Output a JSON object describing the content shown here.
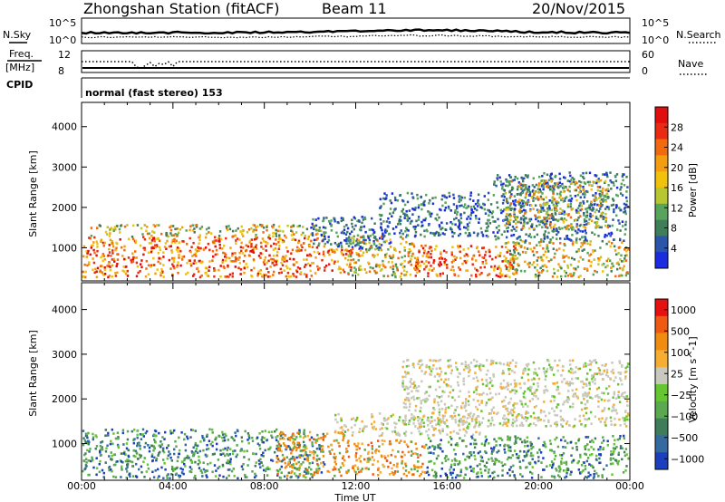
{
  "header": {
    "title": "Zhongshan Station (fitACF)",
    "beam": "Beam 11",
    "date": "20/Nov/2015"
  },
  "strip": {
    "nsky_label": "N.Sky",
    "nsky_ticks": [
      "10^5",
      "10^0"
    ],
    "nsearch_label": "N.Search",
    "nsearch_ticks": [
      "10^5",
      "10^0"
    ],
    "freq_label_line1": "Freq.",
    "freq_label_line2": "[MHz]",
    "freq_ticks": [
      "12",
      "8"
    ],
    "nave_label": "Nave",
    "nave_ticks": [
      "60",
      "0"
    ],
    "cpid_label": "CPID",
    "mode_text": "normal (fast stereo) 153"
  },
  "colors": {
    "power_scale": [
      "#1a2be0",
      "#2a55a8",
      "#3f7e59",
      "#58a45c",
      "#b8c632",
      "#f0c20b",
      "#f39e10",
      "#f26a0e",
      "#ea2b13",
      "#e10e0e"
    ],
    "velocity_scale": [
      "#1b3fbe",
      "#356aa0",
      "#3f7c5a",
      "#5aa850",
      "#66c631",
      "#c8c8bd",
      "#f5ae32",
      "#f08c10",
      "#ee5a12",
      "#e61010"
    ]
  },
  "chart_data": [
    {
      "type": "heatmap",
      "title": "",
      "xlabel": "",
      "ylabel": "Slant Range [km]",
      "x_tick_labels": [
        "00:00",
        "04:00",
        "08:00",
        "12:00",
        "16:00",
        "20:00",
        "00:00"
      ],
      "y_tick_labels": [
        "1000",
        "2000",
        "3000",
        "4000"
      ],
      "colorbar_label": "Power [dB]",
      "colorbar_ticks": [
        "28",
        "24",
        "20",
        "16",
        "12",
        "8",
        "4"
      ],
      "xlim": [
        0,
        24
      ],
      "ylim": [
        180,
        4600
      ],
      "regions": [
        {
          "t0": 0.0,
          "t1": 10.6,
          "r0": 300,
          "r1": 1300,
          "level": "high"
        },
        {
          "t0": 0.3,
          "t1": 10.6,
          "r0": 1300,
          "r1": 1600,
          "level": "medium"
        },
        {
          "t0": 10.6,
          "t1": 11.8,
          "r0": 400,
          "r1": 1000,
          "level": "high"
        },
        {
          "t0": 10.0,
          "t1": 13.5,
          "r0": 1000,
          "r1": 1800,
          "level": "low"
        },
        {
          "t0": 11.5,
          "t1": 14.5,
          "r0": 300,
          "r1": 1300,
          "level": "medium"
        },
        {
          "t0": 13.0,
          "t1": 18.0,
          "r0": 1300,
          "r1": 2400,
          "level": "low"
        },
        {
          "t0": 14.5,
          "t1": 19.0,
          "r0": 300,
          "r1": 1100,
          "level": "high"
        },
        {
          "t0": 18.5,
          "t1": 23.9,
          "r0": 300,
          "r1": 1200,
          "level": "medium"
        },
        {
          "t0": 18.0,
          "t1": 23.9,
          "r0": 1200,
          "r1": 2900,
          "level": "low"
        },
        {
          "t0": 18.5,
          "t1": 23.0,
          "r0": 1500,
          "r1": 2700,
          "level": "medium"
        }
      ]
    },
    {
      "type": "heatmap",
      "title": "",
      "xlabel": "Time UT",
      "ylabel": "Slant Range [km]",
      "x_tick_labels": [
        "00:00",
        "04:00",
        "08:00",
        "12:00",
        "16:00",
        "20:00",
        "00:00"
      ],
      "y_tick_labels": [
        "1000",
        "2000",
        "3000",
        "4000"
      ],
      "colorbar_label": "Velocity [m s^-1]",
      "colorbar_ticks": [
        "1000",
        "500",
        "100",
        "25",
        "−25",
        "−100",
        "−500",
        "−1000"
      ],
      "xlim": [
        0,
        24
      ],
      "ylim": [
        180,
        4600
      ],
      "regions": [
        {
          "t0": 0.0,
          "t1": 10.6,
          "r0": 250,
          "r1": 1350,
          "level": "green"
        },
        {
          "t0": 8.5,
          "t1": 11.5,
          "r0": 300,
          "r1": 1300,
          "level": "orange"
        },
        {
          "t0": 11.0,
          "t1": 17.5,
          "r0": 1200,
          "r1": 1700,
          "level": "gray"
        },
        {
          "t0": 14.0,
          "t1": 23.9,
          "r0": 1400,
          "r1": 2900,
          "level": "gray"
        },
        {
          "t0": 15.0,
          "t1": 23.9,
          "r0": 250,
          "r1": 1200,
          "level": "green"
        },
        {
          "t0": 11.5,
          "t1": 15.0,
          "r0": 300,
          "r1": 1100,
          "level": "orange"
        }
      ]
    }
  ]
}
